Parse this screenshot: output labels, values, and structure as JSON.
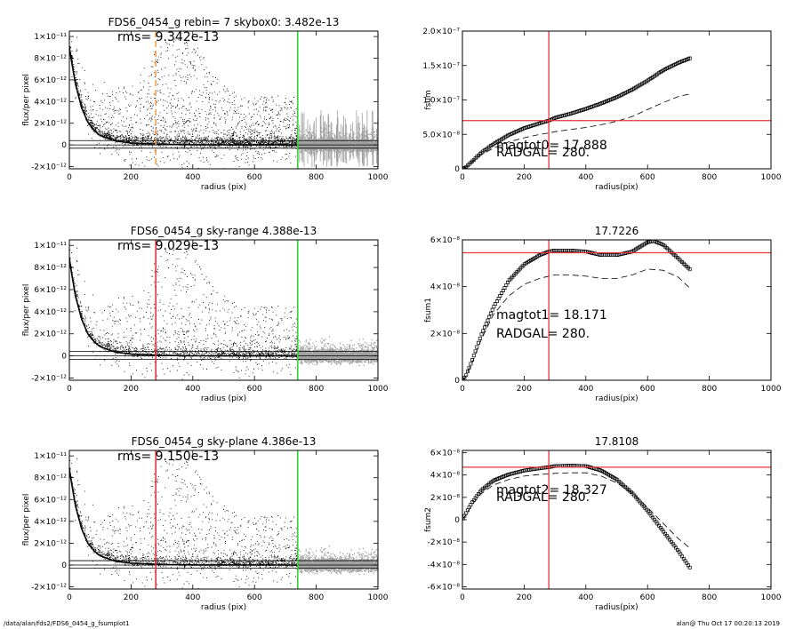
{
  "footer": {
    "left": "/data/alan/fds2/FDS6_0454_g_fsumplot1",
    "right": "alan@  Thu Oct 17 00:20:13 2019"
  },
  "colors": {
    "points": "#000000",
    "sky_points": "#a0a0a0",
    "red_line": "#e8323c",
    "green_line": "#32d232",
    "orange_line": "#f0a050"
  },
  "chart_data": [
    {
      "id": "flux1",
      "type": "scatter",
      "title": "FDS6_0454_g rebin= 7    skybox0:  3.482e-13",
      "annotation": "rms= 9.342e-13",
      "xlabel": "radius (pix)",
      "ylabel": "flux/per pixel",
      "xlim": [
        0,
        1000
      ],
      "ylim": [
        -2.2e-12,
        1.05e-11
      ],
      "xticks": [
        "0",
        "200",
        "400",
        "600",
        "800",
        "1000"
      ],
      "xtick_values": [
        0,
        200,
        400,
        600,
        800,
        1000
      ],
      "yticks": [
        "-2×10⁻¹²",
        "0",
        "2×10⁻¹²",
        "4×10⁻¹²",
        "6×10⁻¹²",
        "8×10⁻¹²",
        "1×10⁻¹¹"
      ],
      "ytick_values": [
        -2e-12,
        0,
        2e-12,
        4e-12,
        6e-12,
        8e-12,
        1e-11
      ],
      "profile": {
        "r": [
          0,
          10,
          20,
          40,
          60,
          80,
          100,
          150,
          200,
          300,
          400,
          600,
          740
        ],
        "f": [
          9e-12,
          7.2e-12,
          5.6e-12,
          3.4e-12,
          2.1e-12,
          1.35e-12,
          8.6e-13,
          3.6e-13,
          1.8e-13,
          6e-14,
          2e-14,
          0,
          0
        ]
      },
      "band_lines": [
        4e-13,
        0,
        -3e-13
      ],
      "vlines": [
        {
          "x": 280,
          "color": "orange",
          "style": "dashed"
        },
        {
          "x": 740,
          "color": "green",
          "style": "solid"
        }
      ],
      "sky_region": "errorbars"
    },
    {
      "id": "fsum",
      "type": "scatter",
      "title": "",
      "xlabel": "radius(pix)",
      "ylabel": "fsum",
      "xlim": [
        0,
        1000
      ],
      "ylim": [
        0,
        2e-07
      ],
      "xticks": [
        "0",
        "200",
        "400",
        "600",
        "800",
        "1000"
      ],
      "xtick_values": [
        0,
        200,
        400,
        600,
        800,
        1000
      ],
      "yticks": [
        "0",
        "5.0×10⁻⁸",
        "1.0×10⁻⁷",
        "1.5×10⁻⁷",
        "2.0×10⁻⁷"
      ],
      "ytick_values": [
        0,
        5e-08,
        1e-07,
        1.5e-07,
        2e-07
      ],
      "curve": {
        "r": [
          0,
          10,
          30,
          60,
          100,
          150,
          200,
          250,
          280,
          300,
          350,
          400,
          450,
          500,
          550,
          600,
          650,
          700,
          740
        ],
        "v": [
          0,
          2e-09,
          1e-08,
          2.3e-08,
          3.6e-08,
          4.9e-08,
          5.9e-08,
          6.6e-08,
          7e-08,
          7.4e-08,
          8e-08,
          8.7e-08,
          9.5e-08,
          1.04e-07,
          1.15e-07,
          1.28e-07,
          1.43e-07,
          1.54e-07,
          1.61e-07
        ]
      },
      "dashed": {
        "r": [
          0,
          10,
          30,
          60,
          100,
          150,
          200,
          250,
          280,
          300,
          350,
          400,
          450,
          500,
          550,
          600,
          650,
          700,
          740
        ],
        "v": [
          0,
          2e-09,
          9e-09,
          2e-08,
          3e-08,
          3.9e-08,
          4.5e-08,
          5e-08,
          5.2e-08,
          5.4e-08,
          5.7e-08,
          6e-08,
          6.4e-08,
          6.9e-08,
          7.6e-08,
          8.6e-08,
          9.6e-08,
          1.05e-07,
          1.09e-07
        ]
      },
      "hline": 7e-08,
      "vline": 280,
      "notes": [
        "magtot0= 17.888",
        "RADGAL=    280."
      ]
    },
    {
      "id": "flux2",
      "type": "scatter",
      "title": "FDS6_0454_g sky-range  4.388e-13",
      "annotation": "rms= 9.029e-13",
      "xlabel": "radius (pix)",
      "ylabel": "flux/per pixel",
      "xlim": [
        0,
        1000
      ],
      "ylim": [
        -2.2e-12,
        1.05e-11
      ],
      "xticks": [
        "0",
        "200",
        "400",
        "600",
        "800",
        "1000"
      ],
      "xtick_values": [
        0,
        200,
        400,
        600,
        800,
        1000
      ],
      "yticks": [
        "-2×10⁻¹²",
        "0",
        "2×10⁻¹²",
        "4×10⁻¹²",
        "6×10⁻¹²",
        "8×10⁻¹²",
        "1×10⁻¹¹"
      ],
      "ytick_values": [
        -2e-12,
        0,
        2e-12,
        4e-12,
        6e-12,
        8e-12,
        1e-11
      ],
      "profile": {
        "r": [
          0,
          10,
          20,
          40,
          60,
          80,
          100,
          150,
          200,
          300,
          400,
          600,
          740
        ],
        "f": [
          8.8e-12,
          7e-12,
          5.4e-12,
          3.3e-12,
          2e-12,
          1.3e-12,
          8.4e-13,
          3.4e-13,
          1.7e-13,
          5e-14,
          1e-14,
          0,
          0
        ]
      },
      "band_lines": [
        4e-13,
        0,
        -3e-13
      ],
      "vlines": [
        {
          "x": 280,
          "color": "red",
          "style": "solid"
        },
        {
          "x": 740,
          "color": "green",
          "style": "solid"
        }
      ],
      "sky_region": "points"
    },
    {
      "id": "fsum1",
      "type": "scatter",
      "title": "17.7226",
      "xlabel": "radius(pix)",
      "ylabel": "fsum1",
      "xlim": [
        0,
        1000
      ],
      "ylim": [
        0,
        6e-08
      ],
      "xticks": [
        "0",
        "200",
        "400",
        "600",
        "800",
        "1000"
      ],
      "xtick_values": [
        0,
        200,
        400,
        600,
        800,
        1000
      ],
      "yticks": [
        "0",
        "2×10⁻⁸",
        "4×10⁻⁸",
        "6×10⁻⁸"
      ],
      "ytick_values": [
        0,
        2e-08,
        4e-08,
        6e-08
      ],
      "curve": {
        "r": [
          0,
          10,
          30,
          60,
          100,
          150,
          200,
          250,
          280,
          300,
          350,
          400,
          450,
          500,
          550,
          600,
          620,
          650,
          700,
          740
        ],
        "v": [
          0,
          1.5e-09,
          8e-09,
          1.9e-08,
          3.1e-08,
          4.25e-08,
          4.95e-08,
          5.35e-08,
          5.5e-08,
          5.55e-08,
          5.55e-08,
          5.5e-08,
          5.35e-08,
          5.35e-08,
          5.5e-08,
          5.9e-08,
          5.95e-08,
          5.8e-08,
          5.2e-08,
          4.7e-08
        ]
      },
      "dashed": {
        "r": [
          0,
          10,
          30,
          60,
          100,
          150,
          200,
          250,
          280,
          300,
          350,
          400,
          450,
          500,
          550,
          600,
          650,
          700,
          740
        ],
        "v": [
          0,
          1.5e-09,
          7e-09,
          1.7e-08,
          2.8e-08,
          3.6e-08,
          4.1e-08,
          4.35e-08,
          4.45e-08,
          4.5e-08,
          4.5e-08,
          4.45e-08,
          4.35e-08,
          4.35e-08,
          4.5e-08,
          4.75e-08,
          4.7e-08,
          4.4e-08,
          3.9e-08
        ]
      },
      "hline": 5.45e-08,
      "vline": 280,
      "notes": [
        "magtot1= 18.171",
        "RADGAL=    280."
      ]
    },
    {
      "id": "flux3",
      "type": "scatter",
      "title": "FDS6_0454_g sky-plane  4.386e-13",
      "annotation": "rms= 9.150e-13",
      "xlabel": "radius (pix)",
      "ylabel": "flux/per pixel",
      "xlim": [
        0,
        1000
      ],
      "ylim": [
        -2.2e-12,
        1.05e-11
      ],
      "xticks": [
        "0",
        "200",
        "400",
        "600",
        "800",
        "1000"
      ],
      "xtick_values": [
        0,
        200,
        400,
        600,
        800,
        1000
      ],
      "yticks": [
        "-2×10⁻¹²",
        "0",
        "2×10⁻¹²",
        "4×10⁻¹²",
        "6×10⁻¹²",
        "8×10⁻¹²",
        "1×10⁻¹¹"
      ],
      "ytick_values": [
        -2e-12,
        0,
        2e-12,
        4e-12,
        6e-12,
        8e-12,
        1e-11
      ],
      "profile": {
        "r": [
          0,
          10,
          20,
          40,
          60,
          80,
          100,
          150,
          200,
          300,
          400,
          600,
          740
        ],
        "f": [
          8.8e-12,
          7e-12,
          5.4e-12,
          3.3e-12,
          2e-12,
          1.3e-12,
          8.4e-13,
          3.4e-13,
          1.7e-13,
          5e-14,
          1e-14,
          0,
          0
        ]
      },
      "band_lines": [
        4e-13,
        0,
        -3e-13
      ],
      "vlines": [
        {
          "x": 280,
          "color": "red",
          "style": "solid"
        },
        {
          "x": 740,
          "color": "green",
          "style": "solid"
        }
      ],
      "sky_region": "points"
    },
    {
      "id": "fsum2",
      "type": "scatter",
      "title": "17.8108",
      "xlabel": "radius(pix)",
      "ylabel": "fsum2",
      "xlim": [
        0,
        1000
      ],
      "ylim": [
        -6.2e-08,
        6.2e-08
      ],
      "xticks": [
        "0",
        "200",
        "400",
        "600",
        "800",
        "1000"
      ],
      "xtick_values": [
        0,
        200,
        400,
        600,
        800,
        1000
      ],
      "yticks": [
        "-6×10⁻⁸",
        "-4×10⁻⁸",
        "-2×10⁻⁸",
        "0",
        "2×10⁻⁸",
        "4×10⁻⁸",
        "6×10⁻⁸"
      ],
      "ytick_values": [
        -6e-08,
        -4e-08,
        -2e-08,
        0,
        2e-08,
        4e-08,
        6e-08
      ],
      "curve": {
        "r": [
          0,
          10,
          30,
          60,
          100,
          150,
          200,
          250,
          280,
          300,
          350,
          400,
          450,
          500,
          550,
          600,
          650,
          700,
          740
        ],
        "v": [
          0,
          5e-09,
          1.5e-08,
          2.6e-08,
          3.5e-08,
          4.05e-08,
          4.4e-08,
          4.6e-08,
          4.7e-08,
          4.8e-08,
          4.85e-08,
          4.8e-08,
          4.4e-08,
          3.6e-08,
          2.4e-08,
          8e-09,
          -1e-08,
          -2.8e-08,
          -4.4e-08
        ]
      },
      "dashed": {
        "r": [
          0,
          10,
          30,
          60,
          100,
          150,
          200,
          250,
          280,
          300,
          350,
          400,
          450,
          500,
          550,
          600,
          650,
          700,
          740
        ],
        "v": [
          0,
          4e-09,
          1.3e-08,
          2.3e-08,
          3.1e-08,
          3.6e-08,
          3.9e-08,
          4.05e-08,
          4.1e-08,
          4.15e-08,
          4.2e-08,
          4.2e-08,
          3.9e-08,
          3.3e-08,
          2.4e-08,
          1.1e-08,
          -3e-09,
          -1.7e-08,
          -2.6e-08
        ]
      },
      "hline": 4.7e-08,
      "vline": 280,
      "notes": [
        "magtot2= 18.327",
        "RADGAL=    280."
      ]
    }
  ]
}
